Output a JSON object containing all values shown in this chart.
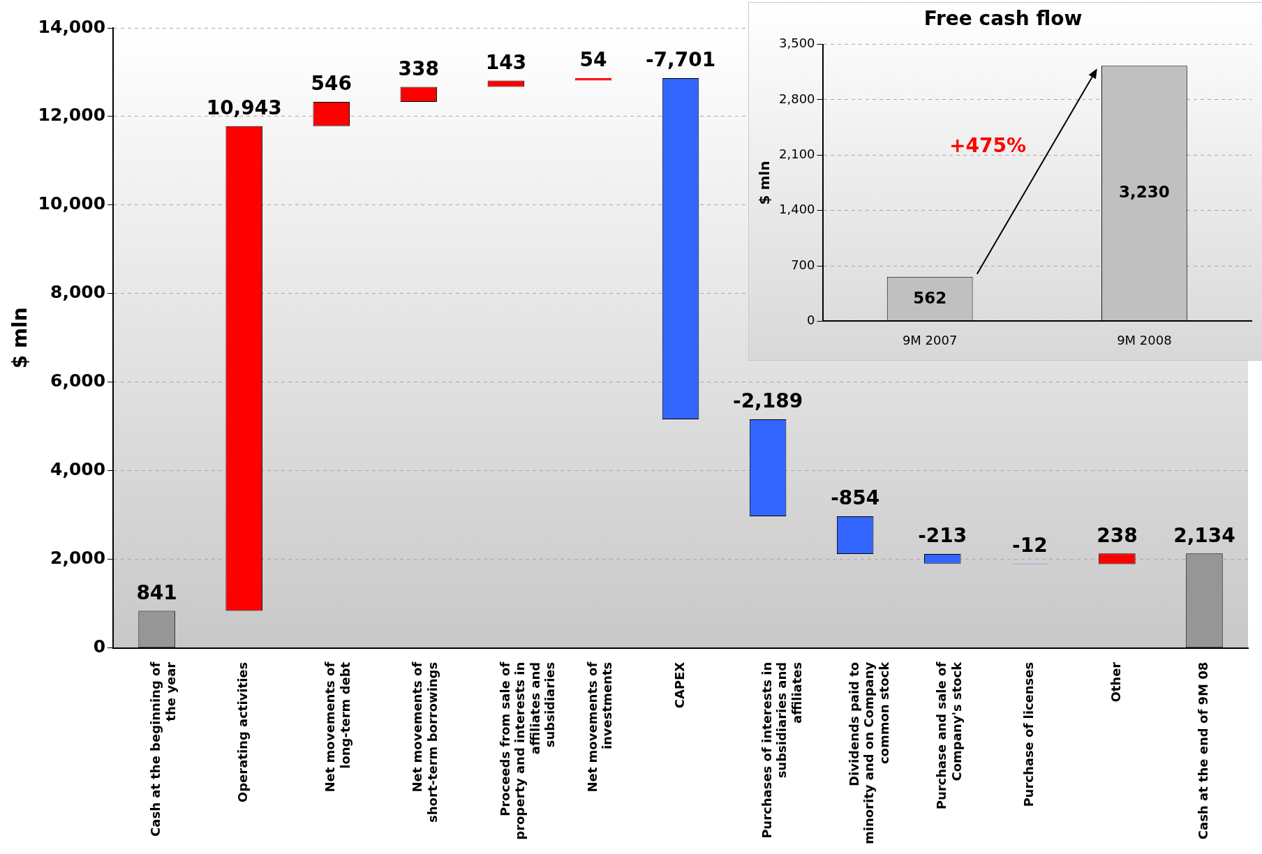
{
  "chart_data": [
    {
      "type": "bar",
      "ylabel": "$ mln",
      "categories": [
        "Cash at the beginning of the year",
        "Operating activities",
        "Net movements of long-term debt",
        "Net movements of short-term borrowings",
        "Proceeds from sale of property and interests in affiliates and subsidiaries",
        "Net movements of investments",
        "CAPEX",
        "Purchases of interests in subsidiaries and affiliates",
        "Dividends paid to minority and on Company common stock",
        "Purchase and sale of Company's stock",
        "Purchase of licenses",
        "Other",
        "Cash at the end of 9M 08"
      ],
      "values": [
        841,
        10943,
        546,
        338,
        143,
        54,
        -7701,
        -2189,
        -854,
        -213,
        -12,
        238,
        2134
      ],
      "base": [
        0,
        841,
        11784,
        12330,
        12668,
        12811,
        12865,
        5164,
        2975,
        2121,
        1908,
        1896,
        0
      ],
      "colors": [
        "#969696",
        "#ff0000",
        "#ff0000",
        "#ff0000",
        "#ff0000",
        "#ff0000",
        "#3366ff",
        "#3366ff",
        "#3366ff",
        "#3366ff",
        "#3366ff",
        "#ff0000",
        "#969696"
      ],
      "value_labels": [
        "841",
        "10,943",
        "546",
        "338",
        "143",
        "54",
        "-7,701",
        "-2,189",
        "-854",
        "-213",
        "-12",
        "238",
        "2,134"
      ],
      "ylim": [
        0,
        14000
      ],
      "yticks": [
        {
          "value": 0,
          "label": "0"
        },
        {
          "value": 2000,
          "label": "2,000"
        },
        {
          "value": 4000,
          "label": "4,000"
        },
        {
          "value": 6000,
          "label": "6,000"
        },
        {
          "value": 8000,
          "label": "8,000"
        },
        {
          "value": 10000,
          "label": "10,000"
        },
        {
          "value": 12000,
          "label": "12,000"
        },
        {
          "value": 14000,
          "label": "14,000"
        }
      ],
      "grid": "y"
    },
    {
      "type": "bar",
      "title": "Free cash flow",
      "ylabel": "$ mln",
      "categories": [
        "9M 2007",
        "9M 2008"
      ],
      "values": [
        562,
        3230
      ],
      "color": "#c0c0c0",
      "value_labels": [
        "562",
        "3,230"
      ],
      "ylim": [
        0,
        3500
      ],
      "yticks": [
        {
          "value": 0,
          "label": "0"
        },
        {
          "value": 700,
          "label": "700"
        },
        {
          "value": 1400,
          "label": "1,400"
        },
        {
          "value": 2100,
          "label": "2,100"
        },
        {
          "value": 2800,
          "label": "2,800"
        },
        {
          "value": 3500,
          "label": "3,500"
        }
      ],
      "grid": "y",
      "annotations": [
        "+475%"
      ]
    }
  ]
}
